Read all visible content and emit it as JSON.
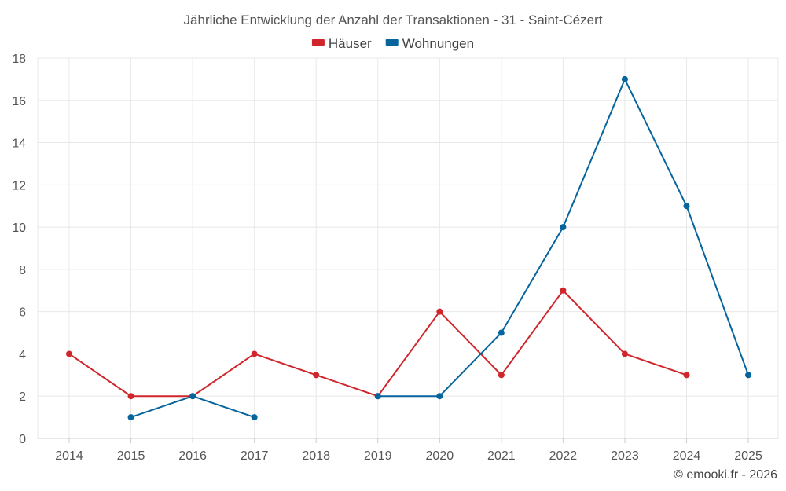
{
  "chart_data": {
    "type": "line",
    "title": "Jährliche Entwicklung der Anzahl der Transaktionen - 31 - Saint-Cézert",
    "xlabel": "",
    "ylabel": "",
    "categories": [
      "2014",
      "2015",
      "2016",
      "2017",
      "2018",
      "2019",
      "2020",
      "2021",
      "2022",
      "2023",
      "2024",
      "2025"
    ],
    "ylim": [
      0,
      18
    ],
    "yticks": [
      0,
      2,
      4,
      6,
      8,
      10,
      12,
      14,
      16,
      18
    ],
    "grid": true,
    "legend_position": "top-center",
    "series": [
      {
        "name": "Häuser",
        "color": "#d0262b",
        "values": [
          4,
          2,
          2,
          4,
          3,
          2,
          6,
          3,
          7,
          4,
          3,
          null
        ]
      },
      {
        "name": "Wohnungen",
        "color": "#05659c",
        "values": [
          null,
          1,
          2,
          1,
          null,
          2,
          2,
          5,
          10,
          17,
          11,
          3
        ]
      }
    ]
  },
  "footer": {
    "credit": "© emooki.fr - 2026"
  }
}
